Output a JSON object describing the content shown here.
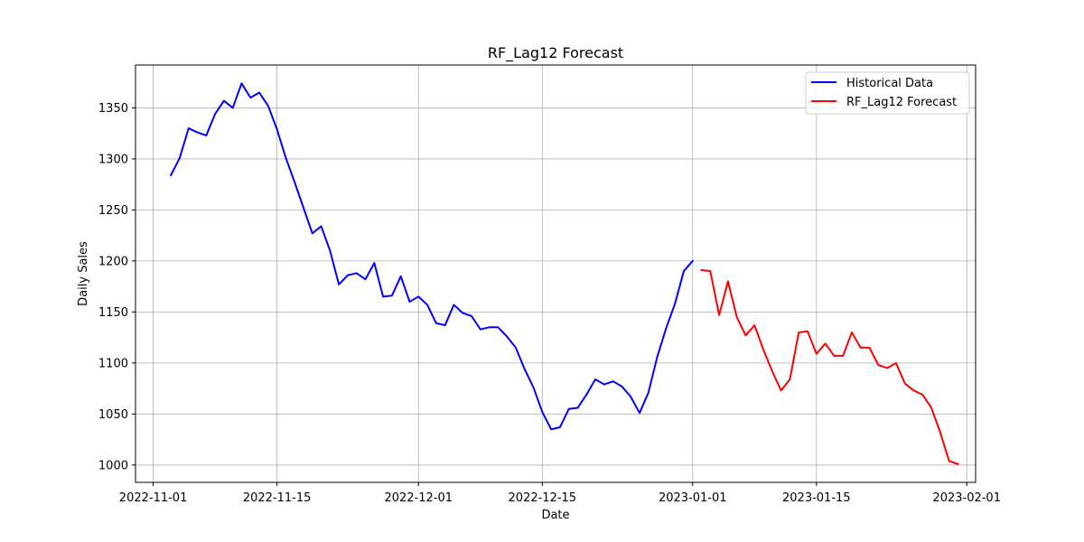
{
  "chart_data": {
    "type": "line",
    "title": "RF_Lag12 Forecast",
    "xlabel": "Date",
    "ylabel": "Daily Sales",
    "xlim": [
      "2022-10-30",
      "2023-02-02"
    ],
    "ylim": [
      983,
      1392
    ],
    "x_ticks": [
      "2022-11-01",
      "2022-11-15",
      "2022-12-01",
      "2022-12-15",
      "2023-01-01",
      "2023-01-15",
      "2023-02-01"
    ],
    "y_ticks": [
      1000,
      1050,
      1100,
      1150,
      1200,
      1250,
      1300,
      1350
    ],
    "grid": true,
    "legend_position": "top-right",
    "series": [
      {
        "name": "Historical Data",
        "color": "#0000ff",
        "start_date": "2022-11-03",
        "values": [
          1284,
          1301,
          1330,
          1326,
          1323,
          1344,
          1357,
          1350,
          1374,
          1360,
          1365,
          1352,
          1329,
          1301,
          1277,
          1252,
          1227,
          1234,
          1210,
          1177,
          1186,
          1188,
          1182,
          1198,
          1165,
          1166,
          1185,
          1160,
          1165,
          1157,
          1139,
          1137,
          1157,
          1149,
          1146,
          1133,
          1135,
          1135,
          1126,
          1115,
          1094,
          1076,
          1052,
          1035,
          1037,
          1055,
          1056,
          1069,
          1084,
          1079,
          1082,
          1077,
          1067,
          1051,
          1071,
          1106,
          1134,
          1158,
          1190,
          1200
        ]
      },
      {
        "name": "RF_Lag12 Forecast",
        "color": "#ff0000",
        "start_date": "2023-01-02",
        "values": [
          1191,
          1190,
          1147,
          1180,
          1145,
          1127,
          1137,
          1113,
          1092,
          1073,
          1084,
          1130,
          1131,
          1109,
          1119,
          1107,
          1107,
          1130,
          1115,
          1115,
          1098,
          1095,
          1100,
          1080,
          1073,
          1069,
          1056,
          1032,
          1004,
          1001
        ]
      }
    ]
  }
}
